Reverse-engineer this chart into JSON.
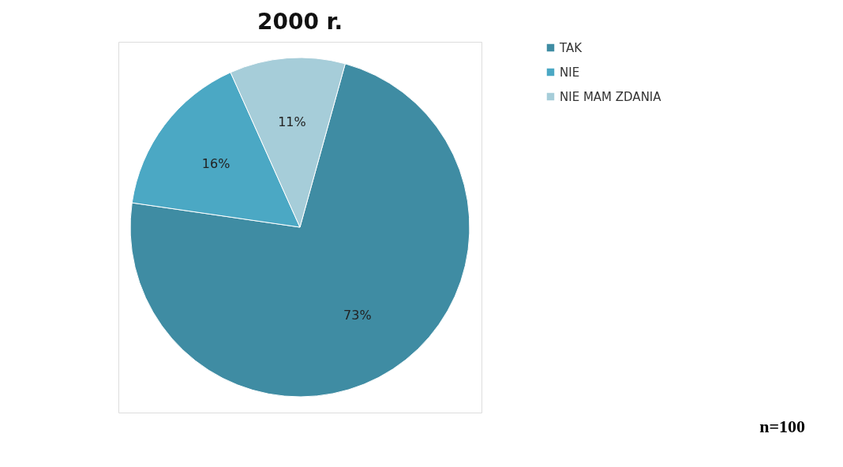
{
  "chart_data": {
    "type": "pie",
    "title": "2000 r.",
    "categories": [
      "TAK",
      "NIE",
      "NIE MAM ZDANIA"
    ],
    "values": [
      73,
      16,
      11
    ],
    "colors": [
      "#3f8ca3",
      "#4ba8c4",
      "#a6cdd9"
    ],
    "value_labels": [
      "73%",
      "16%",
      "11%"
    ],
    "legend": "right",
    "annotations": [
      "n=100"
    ]
  }
}
